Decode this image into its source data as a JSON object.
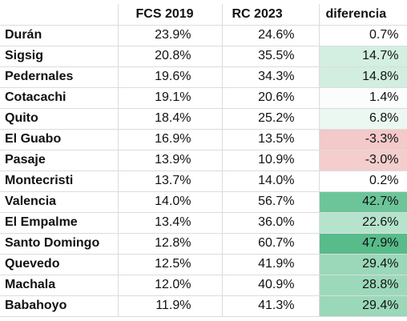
{
  "headers": [
    "",
    "FCS 2019",
    "RC 2023",
    "diferencia"
  ],
  "rows": [
    {
      "name": "Durán",
      "fcs": "23.9%",
      "rc": "24.6%",
      "diff": "0.7%",
      "bg": "#ffffff"
    },
    {
      "name": "Sigsig",
      "fcs": "20.8%",
      "rc": "35.5%",
      "diff": "14.7%",
      "bg": "#d3efe1"
    },
    {
      "name": "Pedernales",
      "fcs": "19.6%",
      "rc": "34.3%",
      "diff": "14.8%",
      "bg": "#d2eee0"
    },
    {
      "name": "Cotacachi",
      "fcs": "19.1%",
      "rc": "20.6%",
      "diff": "1.4%",
      "bg": "#fafdfb"
    },
    {
      "name": "Quito",
      "fcs": "18.4%",
      "rc": "25.2%",
      "diff": "6.8%",
      "bg": "#ebf7f1"
    },
    {
      "name": "El Guabo",
      "fcs": "16.9%",
      "rc": "13.5%",
      "diff": "-3.3%",
      "bg": "#f3c9c9"
    },
    {
      "name": "Pasaje",
      "fcs": "13.9%",
      "rc": "10.9%",
      "diff": "-3.0%",
      "bg": "#f4cdcd"
    },
    {
      "name": "Montecristi",
      "fcs": "13.7%",
      "rc": "14.0%",
      "diff": "0.2%",
      "bg": "#ffffff"
    },
    {
      "name": "Valencia",
      "fcs": "14.0%",
      "rc": "56.7%",
      "diff": "42.7%",
      "bg": "#6cc599"
    },
    {
      "name": "El Empalme",
      "fcs": "13.4%",
      "rc": "36.0%",
      "diff": "22.6%",
      "bg": "#b5e3cb"
    },
    {
      "name": "Santo Domingo",
      "fcs": "12.8%",
      "rc": "60.7%",
      "diff": "47.9%",
      "bg": "#57bb8a"
    },
    {
      "name": "Quevedo",
      "fcs": "12.5%",
      "rc": "41.9%",
      "diff": "29.4%",
      "bg": "#9ad8b9"
    },
    {
      "name": "Machala",
      "fcs": "12.0%",
      "rc": "40.9%",
      "diff": "28.8%",
      "bg": "#9cd9bb"
    },
    {
      "name": "Babahoyo",
      "fcs": "11.9%",
      "rc": "41.3%",
      "diff": "29.4%",
      "bg": "#9ad8b9"
    }
  ]
}
